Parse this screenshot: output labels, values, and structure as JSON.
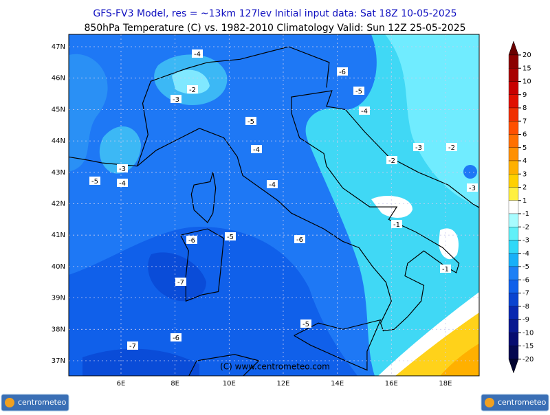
{
  "header": {
    "line1": "GFS-FV3 Model, res = ~13km 127lev    Initial input data: Sat 18Z 10-05-2025",
    "line2": "850hPa Temperature (C) vs. 1982-2010 Climatology  Valid: Sun 12Z 25-05-2025"
  },
  "map": {
    "lat_labels": [
      "47N",
      "46N",
      "45N",
      "44N",
      "43N",
      "42N",
      "41N",
      "40N",
      "39N",
      "38N",
      "37N"
    ],
    "lon_labels": [
      "6E",
      "8E",
      "10E",
      "12E",
      "14E",
      "16E",
      "18E"
    ],
    "contour_labels": [
      "-4",
      "-2",
      "-3",
      "-6",
      "-5",
      "-4",
      "-5",
      "-4",
      "-3",
      "-2",
      "-2",
      "-3",
      "-5",
      "-4",
      "-4",
      "-3",
      "-1",
      "-6",
      "-5",
      "-6",
      "-1",
      "-7",
      "-5",
      "-6",
      "-7"
    ],
    "watermark": "(C) www.centrometeo.com"
  },
  "colorbar": {
    "labels": [
      "20",
      "15",
      "10",
      "9",
      "8",
      "7",
      "6",
      "5",
      "4",
      "3",
      "2",
      "1",
      "-1",
      "-2",
      "-3",
      "-4",
      "-5",
      "-6",
      "-7",
      "-8",
      "-9",
      "-10",
      "-15",
      "-20"
    ]
  },
  "logos": [
    "centrometeo",
    "centrometeo"
  ]
}
